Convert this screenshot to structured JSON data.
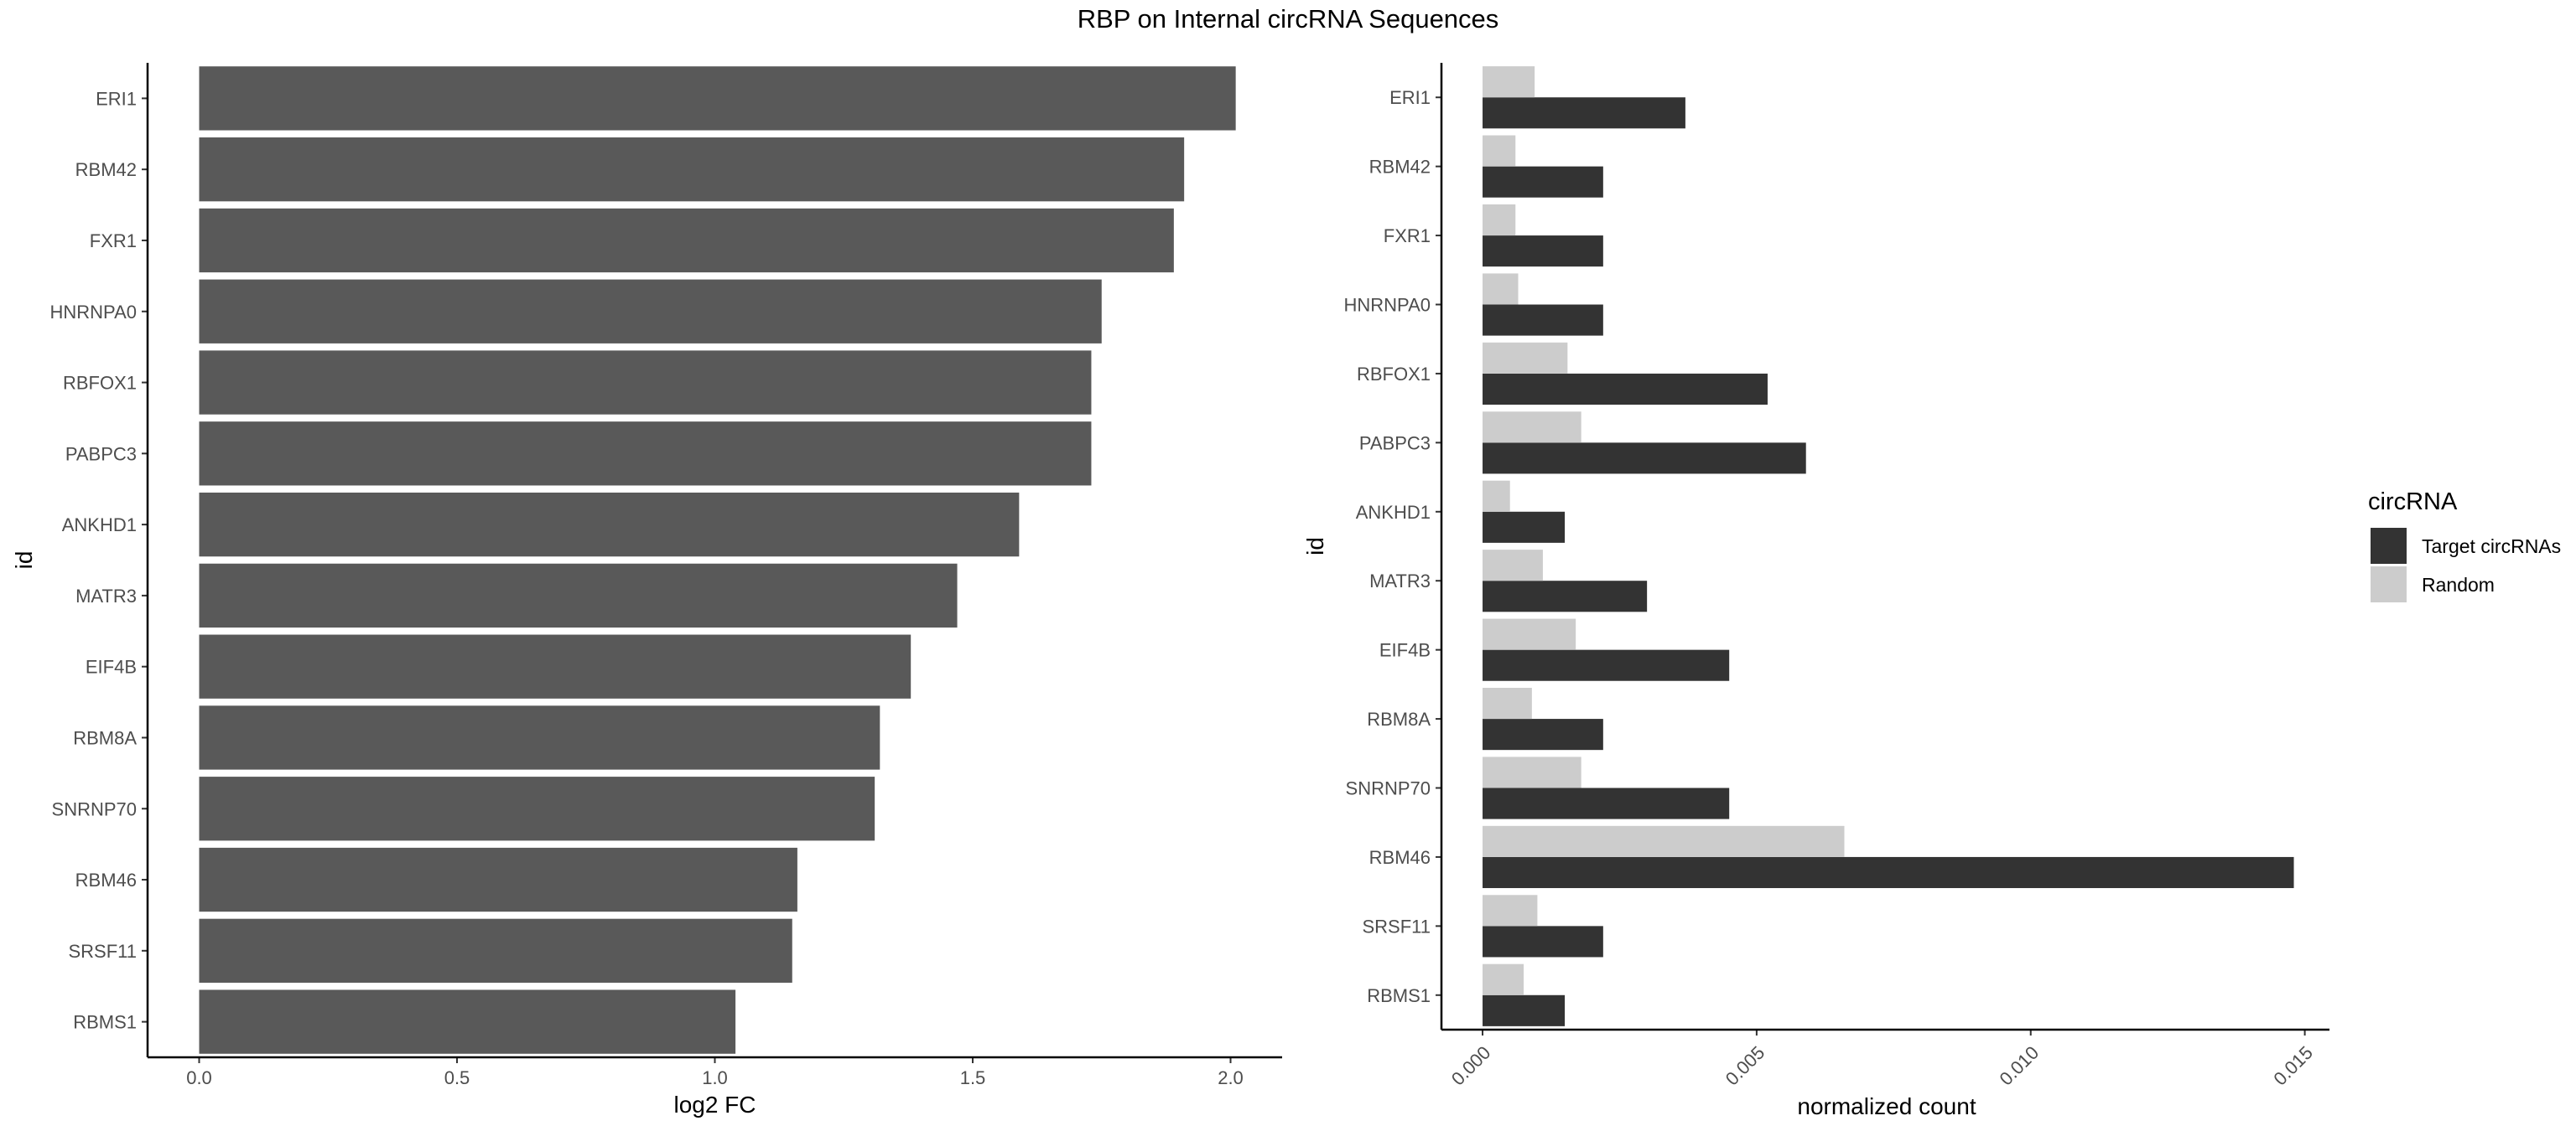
{
  "title": "RBP on Internal circRNA Sequences",
  "chart_data": [
    {
      "type": "bar",
      "orientation": "horizontal",
      "categories": [
        "ERI1",
        "RBM42",
        "FXR1",
        "HNRNPA0",
        "RBFOX1",
        "PABPC3",
        "ANKHD1",
        "MATR3",
        "EIF4B",
        "RBM8A",
        "SNRNP70",
        "RBM46",
        "SRSF11",
        "RBMS1"
      ],
      "values": [
        2.01,
        1.91,
        1.89,
        1.75,
        1.73,
        1.73,
        1.59,
        1.47,
        1.38,
        1.32,
        1.31,
        1.16,
        1.15,
        1.04
      ],
      "xlabel": "log2 FC",
      "ylabel": "id",
      "xlim": [
        -0.1,
        2.1
      ],
      "xticks": [
        "0.0",
        "0.5",
        "1.0",
        "1.5",
        "2.0"
      ],
      "grid": false,
      "bar_color": "#595959"
    },
    {
      "type": "bar",
      "orientation": "horizontal",
      "categories": [
        "ERI1",
        "RBM42",
        "FXR1",
        "HNRNPA0",
        "RBFOX1",
        "PABPC3",
        "ANKHD1",
        "MATR3",
        "EIF4B",
        "RBM8A",
        "SNRNP70",
        "RBM46",
        "SRSF11",
        "RBMS1"
      ],
      "series": [
        {
          "name": "Target circRNAs",
          "color": "#333333",
          "values": [
            0.0037,
            0.0022,
            0.0022,
            0.0022,
            0.0052,
            0.0059,
            0.0015,
            0.003,
            0.0045,
            0.0022,
            0.0045,
            0.0148,
            0.0022,
            0.0015
          ]
        },
        {
          "name": "Random",
          "color": "#cccccc",
          "values": [
            0.00095,
            0.0006,
            0.0006,
            0.00065,
            0.00155,
            0.0018,
            0.0005,
            0.0011,
            0.0017,
            0.0009,
            0.0018,
            0.0066,
            0.001,
            0.00075
          ]
        }
      ],
      "xlabel": "normalized count",
      "ylabel": "id",
      "xlim": [
        -0.00075,
        0.01545
      ],
      "xticks": [
        "0.000",
        "0.005",
        "0.010",
        "0.015"
      ],
      "grid": false,
      "legend": {
        "title": "circRNA",
        "position": "right"
      }
    }
  ]
}
